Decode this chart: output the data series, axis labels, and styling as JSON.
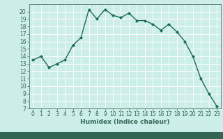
{
  "x": [
    0,
    1,
    2,
    3,
    4,
    5,
    6,
    7,
    8,
    9,
    10,
    11,
    12,
    13,
    14,
    15,
    16,
    17,
    18,
    19,
    20,
    21,
    22,
    23
  ],
  "y": [
    13.5,
    14.0,
    12.5,
    13.0,
    13.5,
    15.5,
    16.5,
    20.3,
    19.0,
    20.3,
    19.5,
    19.2,
    19.8,
    18.8,
    18.8,
    18.3,
    17.5,
    18.3,
    17.3,
    16.0,
    14.0,
    11.0,
    9.0,
    7.3
  ],
  "line_color": "#1a6b5a",
  "marker": "D",
  "marker_size": 2,
  "line_width": 1.0,
  "xlabel": "Humidex (Indice chaleur)",
  "ylim": [
    7,
    21
  ],
  "xlim": [
    -0.5,
    23.5
  ],
  "yticks": [
    7,
    8,
    9,
    10,
    11,
    12,
    13,
    14,
    15,
    16,
    17,
    18,
    19,
    20
  ],
  "xticks": [
    0,
    1,
    2,
    3,
    4,
    5,
    6,
    7,
    8,
    9,
    10,
    11,
    12,
    13,
    14,
    15,
    16,
    17,
    18,
    19,
    20,
    21,
    22,
    23
  ],
  "bg_color": "#cceee8",
  "grid_color": "#ffffff",
  "label_fontsize": 6.5,
  "tick_fontsize": 5.5,
  "axes_color": "#336655",
  "bottom_bar_color": "#336655"
}
